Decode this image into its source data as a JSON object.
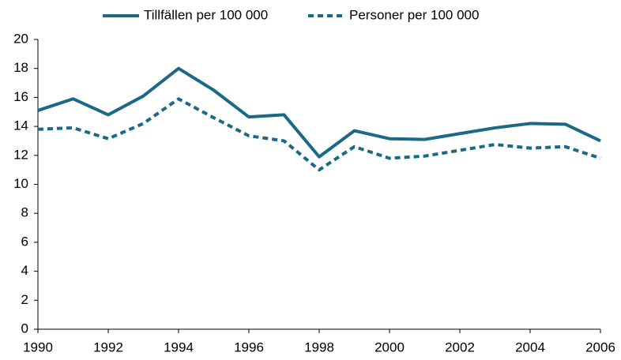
{
  "chart_data": {
    "type": "line",
    "x": [
      1990,
      1991,
      1992,
      1993,
      1994,
      1995,
      1996,
      1997,
      1998,
      1999,
      2000,
      2001,
      2002,
      2003,
      2004,
      2005,
      2006
    ],
    "series": [
      {
        "name": "Tillfällen per 100 000",
        "color": "#1b6887",
        "dash": false,
        "values": [
          15.1,
          15.9,
          14.8,
          16.1,
          18.0,
          16.5,
          14.65,
          14.8,
          11.9,
          13.7,
          13.15,
          13.1,
          13.5,
          13.9,
          14.2,
          14.15,
          13.0
        ]
      },
      {
        "name": "Personer per 100 000",
        "color": "#1b6887",
        "dash": true,
        "values": [
          13.8,
          13.9,
          13.15,
          14.2,
          15.9,
          14.6,
          13.35,
          13.0,
          11.0,
          12.6,
          11.8,
          11.95,
          12.35,
          12.75,
          12.5,
          12.6,
          11.8
        ]
      }
    ],
    "xlim": [
      1990,
      2006
    ],
    "xticks": [
      1990,
      1992,
      1994,
      1996,
      1998,
      2000,
      2002,
      2004,
      2006
    ],
    "ylim": [
      0,
      20
    ],
    "yticks": [
      0,
      2,
      4,
      6,
      8,
      10,
      12,
      14,
      16,
      18,
      20
    ],
    "grid": false,
    "legend": "top"
  }
}
